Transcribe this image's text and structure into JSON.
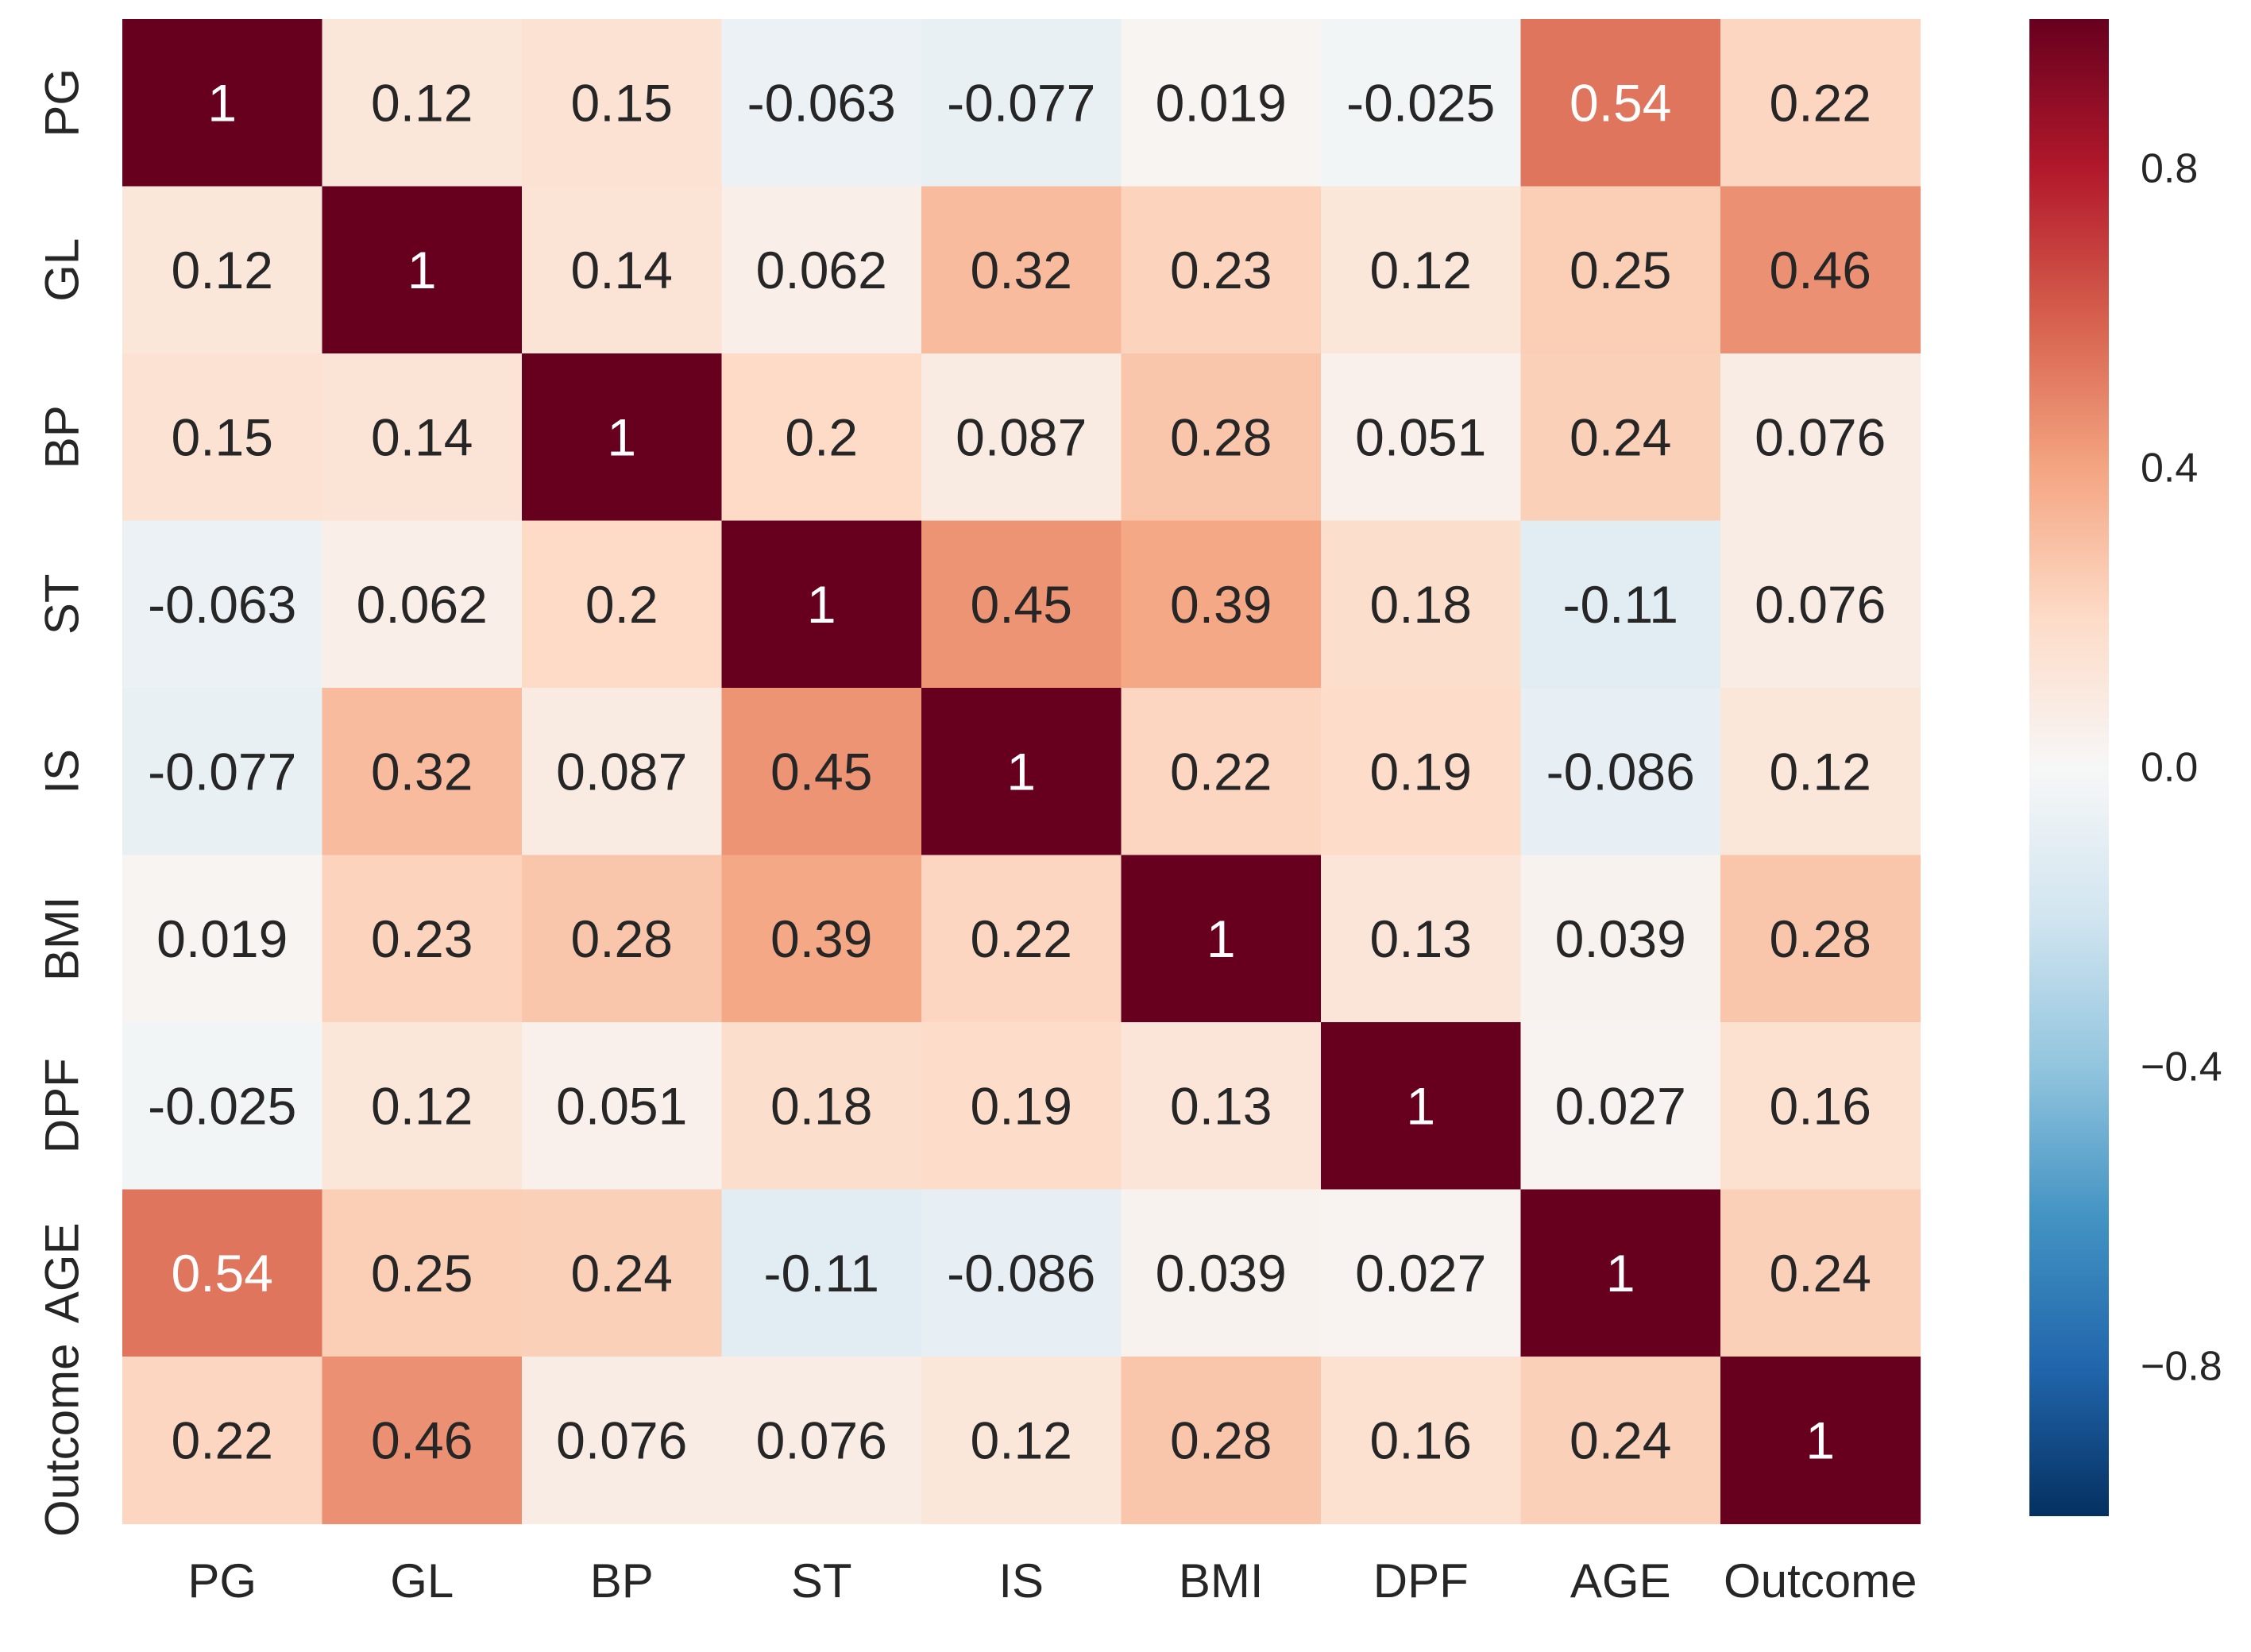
{
  "chart_data": {
    "type": "heatmap",
    "title": "",
    "xlabel": "",
    "ylabel": "",
    "x_categories": [
      "PG",
      "GL",
      "BP",
      "ST",
      "IS",
      "BMI",
      "DPF",
      "AGE",
      "Outcome"
    ],
    "y_categories": [
      "PG",
      "GL",
      "BP",
      "ST",
      "IS",
      "BMI",
      "DPF",
      "AGE",
      "Outcome"
    ],
    "values": [
      [
        1,
        0.12,
        0.15,
        -0.063,
        -0.077,
        0.019,
        -0.025,
        0.54,
        0.22
      ],
      [
        0.12,
        1,
        0.14,
        0.062,
        0.32,
        0.23,
        0.12,
        0.25,
        0.46
      ],
      [
        0.15,
        0.14,
        1,
        0.2,
        0.087,
        0.28,
        0.051,
        0.24,
        0.076
      ],
      [
        -0.063,
        0.062,
        0.2,
        1,
        0.45,
        0.39,
        0.18,
        -0.11,
        0.076
      ],
      [
        -0.077,
        0.32,
        0.087,
        0.45,
        1,
        0.22,
        0.19,
        -0.086,
        0.12
      ],
      [
        0.019,
        0.23,
        0.28,
        0.39,
        0.22,
        1,
        0.13,
        0.039,
        0.28
      ],
      [
        -0.025,
        0.12,
        0.051,
        0.18,
        0.19,
        0.13,
        1,
        0.027,
        0.16
      ],
      [
        0.54,
        0.25,
        0.24,
        -0.11,
        -0.086,
        0.039,
        0.027,
        1,
        0.24
      ],
      [
        0.22,
        0.46,
        0.076,
        0.076,
        0.12,
        0.28,
        0.16,
        0.24,
        1
      ]
    ],
    "annotations": [
      [
        "1",
        "0.12",
        "0.15",
        "-0.063",
        "-0.077",
        "0.019",
        "-0.025",
        "0.54",
        "0.22"
      ],
      [
        "0.12",
        "1",
        "0.14",
        "0.062",
        "0.32",
        "0.23",
        "0.12",
        "0.25",
        "0.46"
      ],
      [
        "0.15",
        "0.14",
        "1",
        "0.2",
        "0.087",
        "0.28",
        "0.051",
        "0.24",
        "0.076"
      ],
      [
        "-0.063",
        "0.062",
        "0.2",
        "1",
        "0.45",
        "0.39",
        "0.18",
        "-0.11",
        "0.076"
      ],
      [
        "-0.077",
        "0.32",
        "0.087",
        "0.45",
        "1",
        "0.22",
        "0.19",
        "-0.086",
        "0.12"
      ],
      [
        "0.019",
        "0.23",
        "0.28",
        "0.39",
        "0.22",
        "1",
        "0.13",
        "0.039",
        "0.28"
      ],
      [
        "-0.025",
        "0.12",
        "0.051",
        "0.18",
        "0.19",
        "0.13",
        "1",
        "0.027",
        "0.16"
      ],
      [
        "0.54",
        "0.25",
        "0.24",
        "-0.11",
        "-0.086",
        "0.039",
        "0.027",
        "1",
        "0.24"
      ],
      [
        "0.22",
        "0.46",
        "0.076",
        "0.076",
        "0.12",
        "0.28",
        "0.16",
        "0.24",
        "1"
      ]
    ],
    "vmin": -1,
    "vmax": 1,
    "colormap": "RdBu_r",
    "colormap_stops": [
      "#053061",
      "#2166ac",
      "#4393c3",
      "#92c5de",
      "#d1e5f0",
      "#f7f7f7",
      "#fddbc7",
      "#f4a582",
      "#d6604d",
      "#b2182b",
      "#67001f"
    ],
    "colorbar": {
      "ticks": [
        0.8,
        0.4,
        0.0,
        -0.4,
        -0.8
      ],
      "tick_labels": [
        "0.8",
        "0.4",
        "0.0",
        "−0.4",
        "−0.8"
      ]
    },
    "grid": false,
    "legend": "colorbar-right"
  }
}
